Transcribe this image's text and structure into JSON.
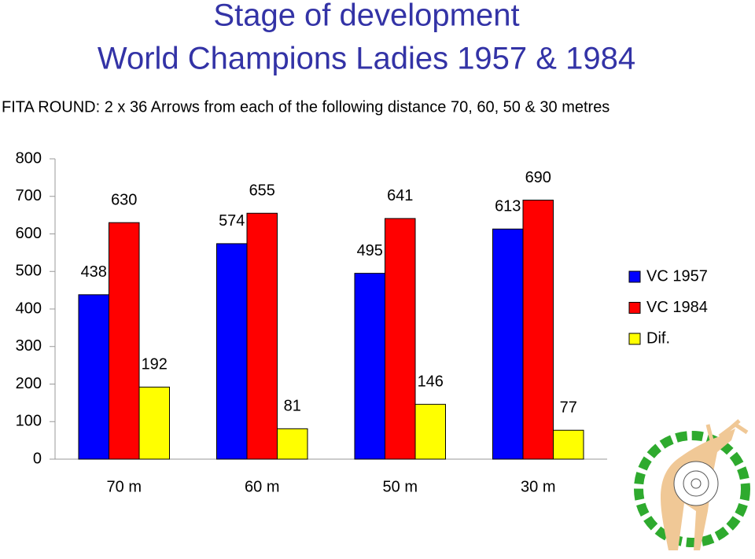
{
  "chart_data": {
    "type": "bar",
    "title": [
      "Stage of development",
      "World Champions Ladies 1957 & 1984"
    ],
    "subtitle": "FITA ROUND: 2 x 36 Arrows from each of the following distance 70, 60, 50 & 30 metres",
    "categories": [
      "70 m",
      "60 m",
      "50 m",
      "30 m"
    ],
    "series": [
      {
        "name": "VC 1957",
        "color": "#0000ff",
        "values": [
          438,
          574,
          495,
          613
        ]
      },
      {
        "name": "VC 1984",
        "color": "#ff0000",
        "values": [
          630,
          655,
          641,
          690
        ]
      },
      {
        "name": "Dif.",
        "color": "#ffff00",
        "values": [
          192,
          81,
          146,
          77
        ]
      }
    ],
    "ylim": [
      0,
      800
    ],
    "yticks": [
      0,
      100,
      200,
      300,
      400,
      500,
      600,
      700,
      800
    ],
    "grid": false,
    "legend": "right"
  }
}
